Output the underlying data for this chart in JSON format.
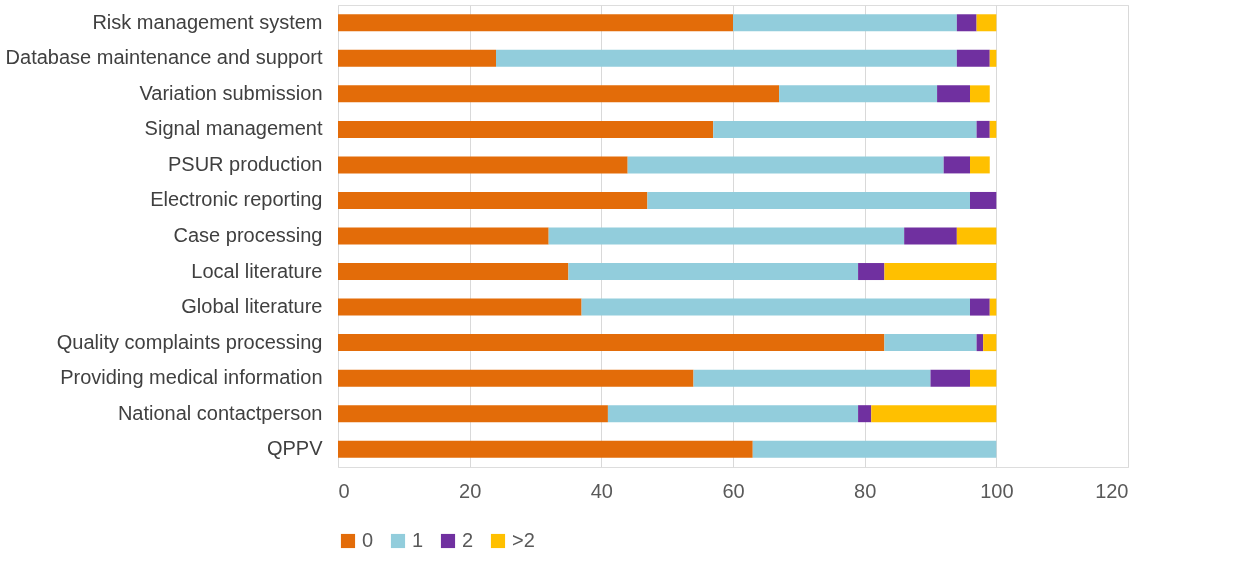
{
  "chart_data": {
    "type": "bar",
    "orientation": "horizontal",
    "stacked": true,
    "categories": [
      "Risk management system",
      "Database maintenance and support",
      "Variation submission",
      "Signal management",
      "PSUR production",
      "Electronic reporting",
      "Case processing",
      "Local literature",
      "Global literature ",
      "Quality complaints processing",
      "Providing medical information",
      "National contactperson",
      "QPPV"
    ],
    "series": [
      {
        "name": "0",
        "color": "#e36c09",
        "values": [
          60,
          24,
          67,
          57,
          44,
          47,
          32,
          35,
          37,
          83,
          54,
          41,
          63
        ]
      },
      {
        "name": "1",
        "color": "#92cddc",
        "values": [
          34,
          70,
          24,
          40,
          48,
          49,
          54,
          44,
          59,
          14,
          36,
          38,
          37
        ]
      },
      {
        "name": "2",
        "color": "#7030a0",
        "values": [
          3,
          5,
          5,
          2,
          4,
          4,
          8,
          4,
          3,
          1,
          6,
          2,
          0
        ]
      },
      {
        "name": ">2",
        "color": "#ffc000",
        "values": [
          3,
          1,
          3,
          1,
          3,
          0,
          6,
          17,
          1,
          2,
          4,
          19,
          0
        ]
      }
    ],
    "xlim": [
      0,
      120
    ],
    "xticks": [
      0,
      20,
      40,
      60,
      80,
      100,
      120
    ],
    "grid": "x",
    "legend": "bottom"
  }
}
